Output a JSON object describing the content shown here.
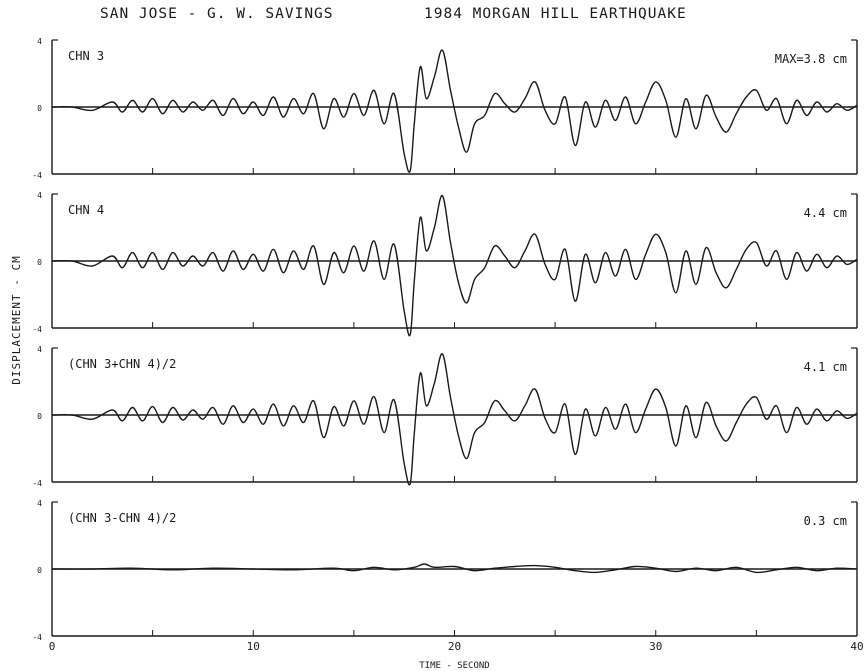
{
  "header": {
    "left_title": "SAN JOSE - G. W. SAVINGS",
    "right_title": "1984 MORGAN HILL EARTHQUAKE"
  },
  "axes": {
    "ylabel": "DISPLACEMENT - CM",
    "xlabel": "TIME - SECOND",
    "x_ticks": [
      "0",
      "10",
      "20",
      "30",
      "40"
    ],
    "y_ticks": [
      "4",
      "0",
      "-4"
    ]
  },
  "chart_data": [
    {
      "type": "line",
      "label": "CHN 3",
      "max_label": "MAX=3.8 cm",
      "xlim": [
        0,
        40
      ],
      "ylim": [
        -4,
        4
      ],
      "x": [
        0,
        1,
        2,
        3,
        3.5,
        4,
        4.5,
        5,
        5.5,
        6,
        6.5,
        7,
        7.5,
        8,
        8.5,
        9,
        9.5,
        10,
        10.5,
        11,
        11.5,
        12,
        12.5,
        13,
        13.5,
        14,
        14.5,
        15,
        15.5,
        16,
        16.5,
        17,
        17.5,
        17.8,
        18,
        18.3,
        18.6,
        19,
        19.4,
        19.8,
        20.2,
        20.6,
        21,
        21.5,
        22,
        22.5,
        23,
        23.5,
        24,
        24.5,
        25,
        25.5,
        26,
        26.5,
        27,
        27.5,
        28,
        28.5,
        29,
        29.5,
        30,
        30.5,
        31,
        31.5,
        32,
        32.5,
        33,
        33.5,
        34,
        34.5,
        35,
        35.5,
        36,
        36.5,
        37,
        37.5,
        38,
        38.5,
        39,
        39.5,
        40
      ],
      "y": [
        0,
        0,
        -0.2,
        0.3,
        -0.3,
        0.4,
        -0.3,
        0.5,
        -0.4,
        0.4,
        -0.3,
        0.3,
        -0.2,
        0.4,
        -0.5,
        0.5,
        -0.4,
        0.3,
        -0.5,
        0.6,
        -0.6,
        0.5,
        -0.4,
        0.8,
        -1.3,
        0.5,
        -0.6,
        0.8,
        -0.5,
        1.0,
        -1.0,
        0.8,
        -2.8,
        -3.8,
        -1.0,
        2.4,
        0.5,
        1.8,
        3.4,
        1.0,
        -1.2,
        -2.7,
        -1.0,
        -0.5,
        0.8,
        0.2,
        -0.3,
        0.5,
        1.5,
        -0.2,
        -1.0,
        0.6,
        -2.3,
        0.3,
        -1.2,
        0.4,
        -0.8,
        0.6,
        -1.0,
        0.3,
        1.5,
        0.4,
        -1.8,
        0.5,
        -1.3,
        0.7,
        -0.6,
        -1.5,
        -0.4,
        0.6,
        1.0,
        -0.2,
        0.5,
        -1.0,
        0.4,
        -0.5,
        0.3,
        -0.3,
        0.2,
        -0.2,
        0.1
      ]
    },
    {
      "type": "line",
      "label": "CHN 4",
      "max_label": "4.4 cm",
      "xlim": [
        0,
        40
      ],
      "ylim": [
        -4,
        4
      ],
      "x": [
        0,
        1,
        2,
        3,
        3.5,
        4,
        4.5,
        5,
        5.5,
        6,
        6.5,
        7,
        7.5,
        8,
        8.5,
        9,
        9.5,
        10,
        10.5,
        11,
        11.5,
        12,
        12.5,
        13,
        13.5,
        14,
        14.5,
        15,
        15.5,
        16,
        16.5,
        17,
        17.5,
        17.8,
        18,
        18.3,
        18.6,
        19,
        19.4,
        19.8,
        20.2,
        20.6,
        21,
        21.5,
        22,
        22.5,
        23,
        23.5,
        24,
        24.5,
        25,
        25.5,
        26,
        26.5,
        27,
        27.5,
        28,
        28.5,
        29,
        29.5,
        30,
        30.5,
        31,
        31.5,
        32,
        32.5,
        33,
        33.5,
        34,
        34.5,
        35,
        35.5,
        36,
        36.5,
        37,
        37.5,
        38,
        38.5,
        39,
        39.5,
        40
      ],
      "y": [
        0,
        0,
        -0.3,
        0.3,
        -0.4,
        0.5,
        -0.4,
        0.5,
        -0.5,
        0.5,
        -0.3,
        0.3,
        -0.3,
        0.5,
        -0.6,
        0.6,
        -0.5,
        0.4,
        -0.6,
        0.7,
        -0.7,
        0.6,
        -0.5,
        0.9,
        -1.4,
        0.5,
        -0.7,
        0.9,
        -0.6,
        1.2,
        -1.1,
        1.0,
        -3.0,
        -4.4,
        -1.2,
        2.6,
        0.6,
        2.0,
        3.9,
        1.1,
        -1.3,
        -2.5,
        -1.1,
        -0.4,
        0.9,
        0.3,
        -0.4,
        0.6,
        1.6,
        -0.2,
        -1.1,
        0.7,
        -2.4,
        0.4,
        -1.3,
        0.5,
        -0.9,
        0.7,
        -1.1,
        0.4,
        1.6,
        0.5,
        -1.9,
        0.6,
        -1.4,
        0.8,
        -0.7,
        -1.6,
        -0.5,
        0.7,
        1.1,
        -0.3,
        0.6,
        -1.1,
        0.5,
        -0.6,
        0.4,
        -0.4,
        0.3,
        -0.2,
        0.1
      ]
    },
    {
      "type": "line",
      "label": "(CHN 3+CHN 4)/2",
      "max_label": "4.1 cm",
      "xlim": [
        0,
        40
      ],
      "ylim": [
        -4,
        4
      ],
      "x": [
        0,
        1,
        2,
        3,
        3.5,
        4,
        4.5,
        5,
        5.5,
        6,
        6.5,
        7,
        7.5,
        8,
        8.5,
        9,
        9.5,
        10,
        10.5,
        11,
        11.5,
        12,
        12.5,
        13,
        13.5,
        14,
        14.5,
        15,
        15.5,
        16,
        16.5,
        17,
        17.5,
        17.8,
        18,
        18.3,
        18.6,
        19,
        19.4,
        19.8,
        20.2,
        20.6,
        21,
        21.5,
        22,
        22.5,
        23,
        23.5,
        24,
        24.5,
        25,
        25.5,
        26,
        26.5,
        27,
        27.5,
        28,
        28.5,
        29,
        29.5,
        30,
        30.5,
        31,
        31.5,
        32,
        32.5,
        33,
        33.5,
        34,
        34.5,
        35,
        35.5,
        36,
        36.5,
        37,
        37.5,
        38,
        38.5,
        39,
        39.5,
        40
      ],
      "y": [
        0,
        0,
        -0.25,
        0.3,
        -0.35,
        0.45,
        -0.35,
        0.5,
        -0.45,
        0.45,
        -0.3,
        0.3,
        -0.25,
        0.45,
        -0.55,
        0.55,
        -0.45,
        0.35,
        -0.55,
        0.65,
        -0.65,
        0.55,
        -0.45,
        0.85,
        -1.35,
        0.5,
        -0.65,
        0.85,
        -0.55,
        1.1,
        -1.05,
        0.9,
        -2.9,
        -4.1,
        -1.1,
        2.5,
        0.55,
        1.9,
        3.65,
        1.05,
        -1.25,
        -2.6,
        -1.05,
        -0.45,
        0.85,
        0.25,
        -0.35,
        0.55,
        1.55,
        -0.2,
        -1.05,
        0.65,
        -2.35,
        0.35,
        -1.25,
        0.45,
        -0.85,
        0.65,
        -1.05,
        0.35,
        1.55,
        0.45,
        -1.85,
        0.55,
        -1.35,
        0.75,
        -0.65,
        -1.55,
        -0.45,
        0.65,
        1.05,
        -0.25,
        0.55,
        -1.05,
        0.45,
        -0.55,
        0.35,
        -0.35,
        0.25,
        -0.2,
        0.1
      ]
    },
    {
      "type": "line",
      "label": "(CHN 3-CHN 4)/2",
      "max_label": "0.3 cm",
      "xlim": [
        0,
        40
      ],
      "ylim": [
        -4,
        4
      ],
      "x": [
        0,
        2,
        4,
        6,
        8,
        10,
        12,
        14,
        15,
        16,
        17,
        18,
        18.5,
        19,
        20,
        21,
        22,
        23,
        24,
        25,
        26,
        27,
        28,
        29,
        30,
        31,
        32,
        33,
        34,
        35,
        36,
        37,
        38,
        39,
        40
      ],
      "y": [
        0,
        0,
        0.05,
        -0.05,
        0.05,
        0,
        -0.05,
        0.05,
        -0.1,
        0.1,
        -0.05,
        0.1,
        0.3,
        0.1,
        0.15,
        -0.1,
        0.05,
        0.15,
        0.2,
        0.1,
        -0.1,
        -0.2,
        -0.05,
        0.15,
        0.05,
        -0.15,
        0.05,
        -0.1,
        0.1,
        -0.2,
        -0.05,
        0.1,
        -0.1,
        0.05,
        0
      ]
    }
  ]
}
